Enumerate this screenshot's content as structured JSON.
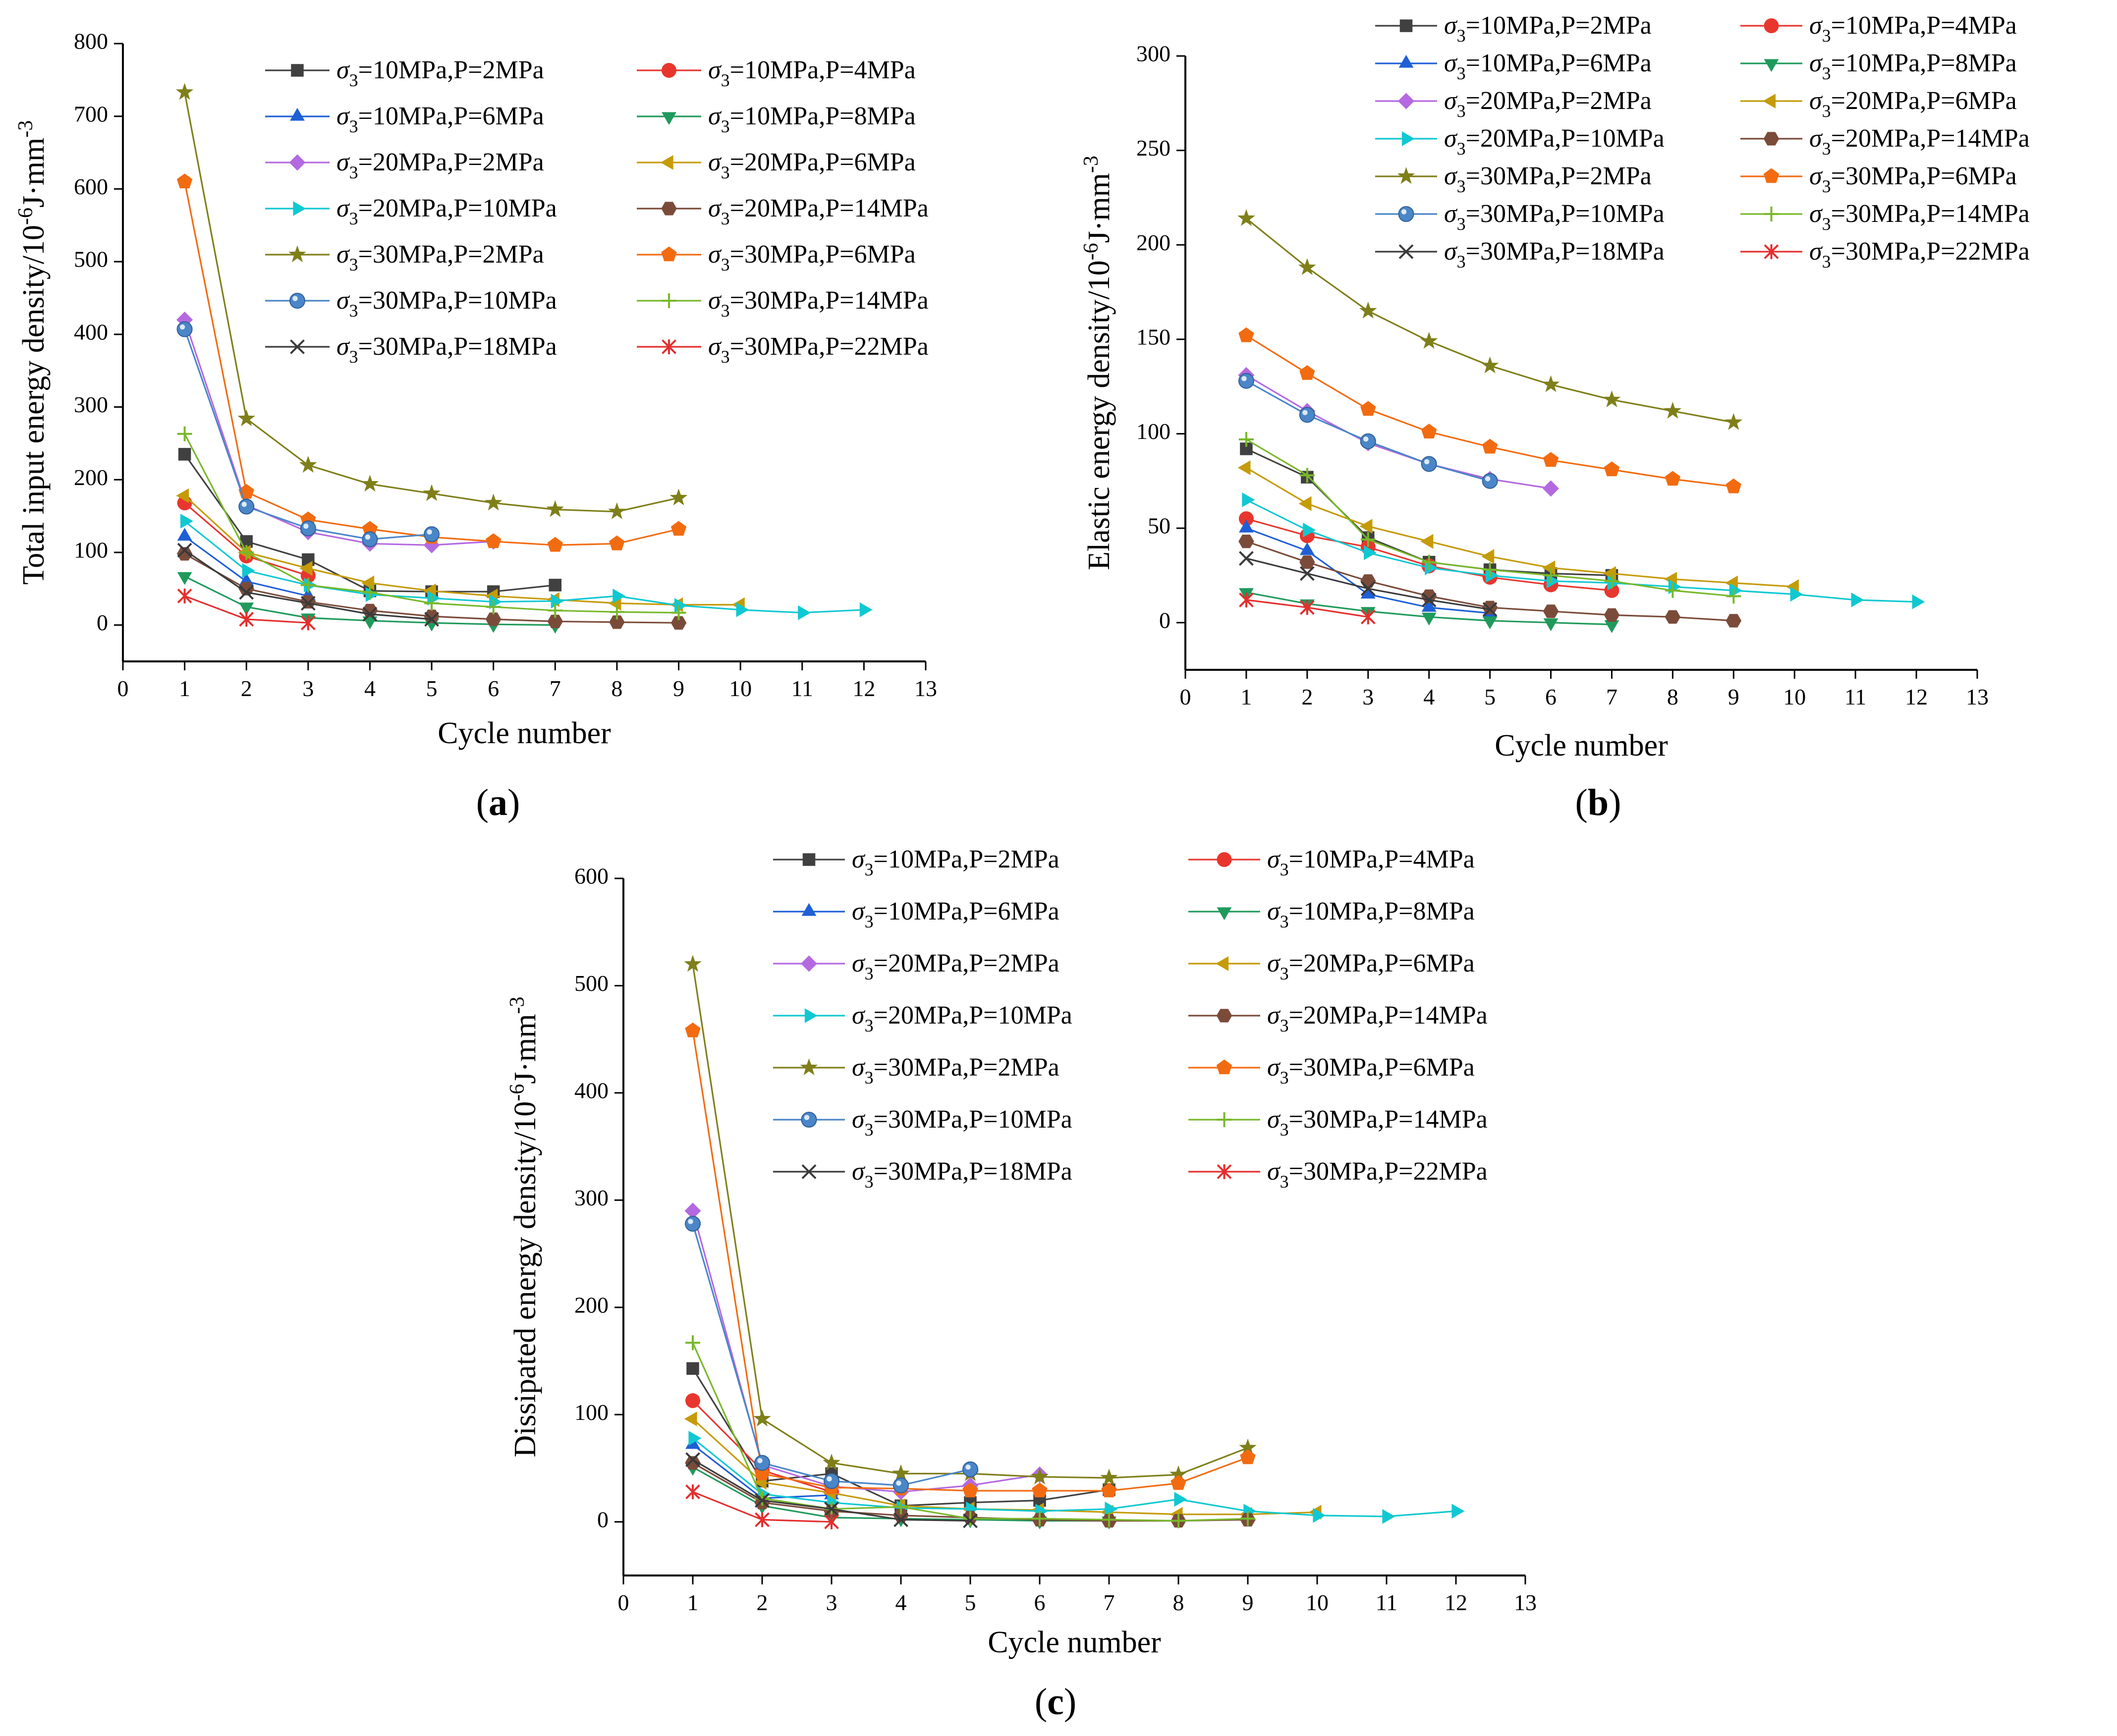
{
  "series_styles": [
    {
      "key": "s10_2",
      "color": "#404040",
      "marker": "square"
    },
    {
      "key": "s10_4",
      "color": "#e8362f",
      "marker": "circle"
    },
    {
      "key": "s10_6",
      "color": "#1f5fd6",
      "marker": "triangle-up"
    },
    {
      "key": "s10_8",
      "color": "#1f9a5b",
      "marker": "triangle-down"
    },
    {
      "key": "s20_2",
      "color": "#b469e0",
      "marker": "diamond"
    },
    {
      "key": "s20_6",
      "color": "#c59b08",
      "marker": "triangle-left"
    },
    {
      "key": "s20_10",
      "color": "#10c8d2",
      "marker": "triangle-right"
    },
    {
      "key": "s20_14",
      "color": "#7b4b3a",
      "marker": "hexagon"
    },
    {
      "key": "s30_2",
      "color": "#7f7f1a",
      "marker": "star"
    },
    {
      "key": "s30_6",
      "color": "#f26b10",
      "marker": "pentagon"
    },
    {
      "key": "s30_10",
      "color": "#4a86c8",
      "marker": "sphere"
    },
    {
      "key": "s30_14",
      "color": "#78b82a",
      "marker": "plus"
    },
    {
      "key": "s30_18",
      "color": "#3a3a3a",
      "marker": "cross"
    },
    {
      "key": "s30_22",
      "color": "#e42e2e",
      "marker": "asterisk"
    }
  ],
  "chart_data": [
    {
      "panel": "(a)",
      "type": "line",
      "xlabel": "Cycle number",
      "ylabel": "Total input energy density/10-6J·mm-3",
      "xlim": [
        0,
        13
      ],
      "ylim": [
        -50,
        800
      ],
      "xticks": [
        "0",
        "1",
        "2",
        "3",
        "4",
        "5",
        "6",
        "7",
        "8",
        "9",
        "10",
        "11",
        "12",
        "13"
      ],
      "yticks": [
        "0",
        "100",
        "200",
        "300",
        "400",
        "500",
        "600",
        "700",
        "800"
      ],
      "series": [
        {
          "key": "s10_2",
          "name": "σ3=10MPa,P=2MPa",
          "x": [
            1,
            2,
            3,
            4,
            5,
            6,
            7
          ],
          "values": [
            235,
            115,
            90,
            47,
            46,
            46,
            55
          ]
        },
        {
          "key": "s10_4",
          "name": "σ3=10MPa,P=4MPa",
          "x": [
            1,
            2,
            3
          ],
          "values": [
            168,
            95,
            68
          ]
        },
        {
          "key": "s10_6",
          "name": "σ3=10MPa,P=6MPa",
          "x": [
            1,
            2,
            3
          ],
          "values": [
            122,
            60,
            40
          ]
        },
        {
          "key": "s10_8",
          "name": "σ3=10MPa,P=8MPa",
          "x": [
            1,
            2,
            3,
            4,
            5,
            6,
            7
          ],
          "values": [
            67,
            25,
            10,
            6,
            3,
            1,
            0
          ]
        },
        {
          "key": "s20_2",
          "name": "σ3=20MPa,P=2MPa",
          "x": [
            1,
            2,
            3,
            4,
            5,
            6
          ],
          "values": [
            420,
            165,
            128,
            112,
            110,
            115
          ]
        },
        {
          "key": "s20_6",
          "name": "σ3=20MPa,P=6MPa",
          "x": [
            1,
            2,
            3,
            4,
            5,
            6,
            7,
            8,
            9,
            10
          ],
          "values": [
            178,
            100,
            78,
            58,
            47,
            40,
            35,
            30,
            28,
            28
          ]
        },
        {
          "key": "s20_10",
          "name": "σ3=20MPa,P=10MPa",
          "x": [
            1,
            2,
            3,
            4,
            5,
            6,
            7,
            8,
            9,
            10,
            11,
            12
          ],
          "values": [
            143,
            75,
            55,
            42,
            37,
            32,
            33,
            40,
            27,
            21,
            17,
            21
          ]
        },
        {
          "key": "s20_14",
          "name": "σ3=20MPa,P=14MPa",
          "x": [
            1,
            2,
            3,
            4,
            5,
            6,
            7,
            8,
            9
          ],
          "values": [
            98,
            50,
            32,
            20,
            12,
            8,
            5,
            4,
            3
          ]
        },
        {
          "key": "s30_2",
          "name": "σ3=30MPa,P=2MPa",
          "x": [
            1,
            2,
            3,
            4,
            5,
            6,
            7,
            8,
            9
          ],
          "values": [
            733,
            284,
            220,
            194,
            181,
            168,
            159,
            156,
            175
          ]
        },
        {
          "key": "s30_6",
          "name": "σ3=30MPa,P=6MPa",
          "x": [
            1,
            2,
            3,
            4,
            5,
            6,
            7,
            8,
            9
          ],
          "values": [
            610,
            183,
            145,
            132,
            121,
            115,
            110,
            112,
            132
          ]
        },
        {
          "key": "s30_10",
          "name": "σ3=30MPa,P=10MPa",
          "x": [
            1,
            2,
            3,
            4,
            5
          ],
          "values": [
            407,
            163,
            133,
            118,
            125
          ]
        },
        {
          "key": "s30_14",
          "name": "σ3=30MPa,P=14MPa",
          "x": [
            1,
            2,
            3,
            4,
            5,
            6,
            7,
            8,
            9
          ],
          "values": [
            263,
            100,
            55,
            45,
            30,
            25,
            20,
            18,
            17
          ]
        },
        {
          "key": "s30_18",
          "name": "σ3=30MPa,P=18MPa",
          "x": [
            1,
            2,
            3,
            4,
            5
          ],
          "values": [
            103,
            45,
            30,
            15,
            8
          ]
        },
        {
          "key": "s30_22",
          "name": "σ3=30MPa,P=22MPa",
          "x": [
            1,
            2,
            3
          ],
          "values": [
            40,
            8,
            3
          ]
        }
      ]
    },
    {
      "panel": "(b)",
      "type": "line",
      "xlabel": "Cycle number",
      "ylabel": "Elastic energy density/10-6J·mm-3",
      "xlim": [
        0,
        13
      ],
      "ylim": [
        -25,
        300
      ],
      "xticks": [
        "0",
        "1",
        "2",
        "3",
        "4",
        "5",
        "6",
        "7",
        "8",
        "9",
        "10",
        "11",
        "12",
        "13"
      ],
      "yticks": [
        "0",
        "50",
        "100",
        "150",
        "200",
        "250",
        "300"
      ],
      "series": [
        {
          "key": "s10_2",
          "name": "σ3=10MPa,P=2MPa",
          "x": [
            1,
            2,
            3,
            4,
            5,
            6,
            7
          ],
          "values": [
            92,
            77,
            45,
            32,
            28,
            26,
            25
          ]
        },
        {
          "key": "s10_4",
          "name": "σ3=10MPa,P=4MPa",
          "x": [
            1,
            2,
            3,
            4,
            5,
            6,
            7
          ],
          "values": [
            55,
            46,
            40,
            30,
            24,
            20,
            17
          ]
        },
        {
          "key": "s10_6",
          "name": "σ3=10MPa,P=6MPa",
          "x": [
            1,
            2,
            3,
            4,
            5
          ],
          "values": [
            50,
            38,
            15,
            8,
            5
          ]
        },
        {
          "key": "s10_8",
          "name": "σ3=10MPa,P=8MPa",
          "x": [
            1,
            2,
            3,
            4,
            5,
            6,
            7
          ],
          "values": [
            16,
            10,
            6,
            3,
            1,
            0,
            -1
          ]
        },
        {
          "key": "s20_2",
          "name": "σ3=20MPa,P=2MPa",
          "x": [
            1,
            2,
            3,
            4,
            5,
            6
          ],
          "values": [
            131,
            112,
            95,
            84,
            76,
            71
          ]
        },
        {
          "key": "s20_6",
          "name": "σ3=20MPa,P=6MPa",
          "x": [
            1,
            2,
            3,
            4,
            5,
            6,
            7,
            8,
            9,
            10
          ],
          "values": [
            82,
            63,
            51,
            43,
            35,
            29,
            26,
            23,
            21,
            19
          ]
        },
        {
          "key": "s20_10",
          "name": "σ3=20MPa,P=10MPa",
          "x": [
            1,
            2,
            3,
            4,
            5,
            6,
            7,
            8,
            9,
            10,
            11,
            12
          ],
          "values": [
            65,
            49,
            37,
            29,
            25,
            22,
            21,
            19,
            17,
            15,
            12,
            11
          ]
        },
        {
          "key": "s20_14",
          "name": "σ3=20MPa,P=14MPa",
          "x": [
            1,
            2,
            3,
            4,
            5,
            6,
            7,
            8,
            9
          ],
          "values": [
            43,
            32,
            22,
            14,
            8,
            6,
            4,
            3,
            1
          ]
        },
        {
          "key": "s30_2",
          "name": "σ3=30MPa,P=2MPa",
          "x": [
            1,
            2,
            3,
            4,
            5,
            6,
            7,
            8,
            9
          ],
          "values": [
            214,
            188,
            165,
            149,
            136,
            126,
            118,
            112,
            106
          ]
        },
        {
          "key": "s30_6",
          "name": "σ3=30MPa,P=6MPa",
          "x": [
            1,
            2,
            3,
            4,
            5,
            6,
            7,
            8,
            9
          ],
          "values": [
            152,
            132,
            113,
            101,
            93,
            86,
            81,
            76,
            72
          ]
        },
        {
          "key": "s30_10",
          "name": "σ3=30MPa,P=10MPa",
          "x": [
            1,
            2,
            3,
            4,
            5
          ],
          "values": [
            128,
            110,
            96,
            84,
            75
          ]
        },
        {
          "key": "s30_14",
          "name": "σ3=30MPa,P=14MPa",
          "x": [
            1,
            2,
            3,
            4,
            5,
            6,
            7,
            8,
            9
          ],
          "values": [
            97,
            78,
            44,
            32,
            28,
            25,
            22,
            17,
            14
          ]
        },
        {
          "key": "s30_18",
          "name": "σ3=30MPa,P=18MPa",
          "x": [
            1,
            2,
            3,
            4,
            5
          ],
          "values": [
            34,
            26,
            18,
            12,
            7
          ]
        },
        {
          "key": "s30_22",
          "name": "σ3=30MPa,P=22MPa",
          "x": [
            1,
            2,
            3
          ],
          "values": [
            12,
            8,
            3
          ]
        }
      ]
    },
    {
      "panel": "(c)",
      "type": "line",
      "xlabel": "Cycle number",
      "ylabel": "Dissipated energy density/10-6J·mm-3",
      "xlim": [
        0,
        13
      ],
      "ylim": [
        -50,
        600
      ],
      "xticks": [
        "0",
        "1",
        "2",
        "3",
        "4",
        "5",
        "6",
        "7",
        "8",
        "9",
        "10",
        "11",
        "12",
        "13"
      ],
      "yticks": [
        "0",
        "100",
        "200",
        "300",
        "400",
        "500",
        "600"
      ],
      "series": [
        {
          "key": "s10_2",
          "name": "σ3=10MPa,P=2MPa",
          "x": [
            1,
            2,
            3,
            4,
            5,
            6,
            7
          ],
          "values": [
            143,
            38,
            45,
            15,
            18,
            20,
            30
          ]
        },
        {
          "key": "s10_4",
          "name": "σ3=10MPa,P=4MPa",
          "x": [
            1,
            2,
            3
          ],
          "values": [
            113,
            48,
            28
          ]
        },
        {
          "key": "s10_6",
          "name": "σ3=10MPa,P=6MPa",
          "x": [
            1,
            2,
            3
          ],
          "values": [
            72,
            22,
            25
          ]
        },
        {
          "key": "s10_8",
          "name": "σ3=10MPa,P=8MPa",
          "x": [
            1,
            2,
            3,
            4,
            5,
            6,
            7
          ],
          "values": [
            51,
            15,
            4,
            3,
            2,
            1,
            1
          ]
        },
        {
          "key": "s20_2",
          "name": "σ3=20MPa,P=2MPa",
          "x": [
            1,
            2,
            3,
            4,
            5,
            6
          ],
          "values": [
            290,
            53,
            33,
            28,
            34,
            44
          ]
        },
        {
          "key": "s20_6",
          "name": "σ3=20MPa,P=6MPa",
          "x": [
            1,
            2,
            3,
            4,
            5,
            6,
            7,
            8,
            9,
            10
          ],
          "values": [
            96,
            37,
            27,
            15,
            12,
            11,
            9,
            7,
            7,
            9
          ]
        },
        {
          "key": "s20_10",
          "name": "σ3=20MPa,P=10MPa",
          "x": [
            1,
            2,
            3,
            4,
            5,
            6,
            7,
            8,
            9,
            10,
            11,
            12
          ],
          "values": [
            78,
            26,
            18,
            13,
            12,
            10,
            12,
            21,
            10,
            6,
            5,
            10
          ]
        },
        {
          "key": "s20_14",
          "name": "σ3=20MPa,P=14MPa",
          "x": [
            1,
            2,
            3,
            4,
            5,
            6,
            7,
            8,
            9
          ],
          "values": [
            55,
            18,
            10,
            6,
            4,
            2,
            1,
            1,
            2
          ]
        },
        {
          "key": "s30_2",
          "name": "σ3=30MPa,P=2MPa",
          "x": [
            1,
            2,
            3,
            4,
            5,
            6,
            7,
            8,
            9
          ],
          "values": [
            520,
            96,
            55,
            45,
            45,
            42,
            41,
            44,
            69
          ]
        },
        {
          "key": "s30_6",
          "name": "σ3=30MPa,P=6MPa",
          "x": [
            1,
            2,
            3,
            4,
            5,
            6,
            7,
            8,
            9
          ],
          "values": [
            458,
            45,
            32,
            31,
            29,
            29,
            29,
            36,
            60
          ]
        },
        {
          "key": "s30_10",
          "name": "σ3=30MPa,P=10MPa",
          "x": [
            1,
            2,
            3,
            4,
            5
          ],
          "values": [
            278,
            55,
            38,
            34,
            49
          ]
        },
        {
          "key": "s30_14",
          "name": "σ3=30MPa,P=14MPa",
          "x": [
            1,
            2,
            3,
            4,
            5,
            6,
            7,
            8,
            9
          ],
          "values": [
            167,
            22,
            12,
            14,
            3,
            3,
            2,
            1,
            3
          ]
        },
        {
          "key": "s30_18",
          "name": "σ3=30MPa,P=18MPa",
          "x": [
            1,
            2,
            3,
            4,
            5
          ],
          "values": [
            58,
            20,
            12,
            2,
            1
          ]
        },
        {
          "key": "s30_22",
          "name": "σ3=30MPa,P=22MPa",
          "x": [
            1,
            2,
            3
          ],
          "values": [
            28,
            2,
            0
          ]
        }
      ]
    }
  ]
}
